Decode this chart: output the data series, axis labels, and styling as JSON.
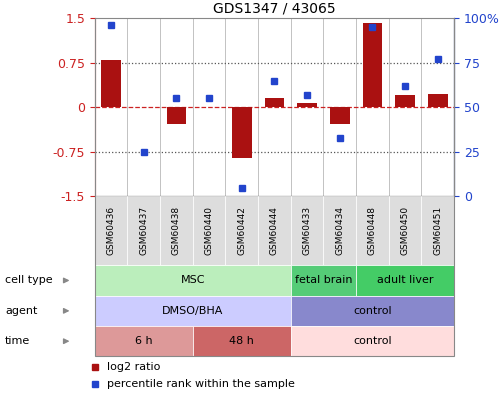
{
  "title": "GDS1347 / 43065",
  "samples": [
    "GSM60436",
    "GSM60437",
    "GSM60438",
    "GSM60440",
    "GSM60442",
    "GSM60444",
    "GSM60433",
    "GSM60434",
    "GSM60448",
    "GSM60450",
    "GSM60451"
  ],
  "log2_ratio": [
    0.8,
    0.0,
    -0.28,
    0.0,
    -0.85,
    0.15,
    0.07,
    -0.28,
    1.42,
    0.2,
    0.22
  ],
  "percentile_rank": [
    96,
    25,
    55,
    55,
    5,
    65,
    57,
    33,
    95,
    62,
    77
  ],
  "ylim": [
    -1.5,
    1.5
  ],
  "yticks_left": [
    -1.5,
    -0.75,
    0,
    0.75,
    1.5
  ],
  "yticks_right": [
    0,
    25,
    50,
    75,
    100
  ],
  "bar_color": "#aa1111",
  "dot_color": "#2244cc",
  "hline_color": "#cc2222",
  "dotted_color": "#555555",
  "cell_type_row": {
    "label": "cell type",
    "groups": [
      {
        "text": "MSC",
        "start": 0,
        "end": 5,
        "color": "#bbeebc"
      },
      {
        "text": "fetal brain",
        "start": 6,
        "end": 7,
        "color": "#55cc77"
      },
      {
        "text": "adult liver",
        "start": 8,
        "end": 10,
        "color": "#44cc66"
      }
    ]
  },
  "agent_row": {
    "label": "agent",
    "groups": [
      {
        "text": "DMSO/BHA",
        "start": 0,
        "end": 5,
        "color": "#ccccff"
      },
      {
        "text": "control",
        "start": 6,
        "end": 10,
        "color": "#8888cc"
      }
    ]
  },
  "time_row": {
    "label": "time",
    "groups": [
      {
        "text": "6 h",
        "start": 0,
        "end": 2,
        "color": "#dd9999"
      },
      {
        "text": "48 h",
        "start": 3,
        "end": 5,
        "color": "#cc6666"
      },
      {
        "text": "control",
        "start": 6,
        "end": 10,
        "color": "#ffdddd"
      }
    ]
  },
  "legend_items": [
    {
      "label": "log2 ratio",
      "color": "#aa1111"
    },
    {
      "label": "percentile rank within the sample",
      "color": "#2244cc"
    }
  ]
}
